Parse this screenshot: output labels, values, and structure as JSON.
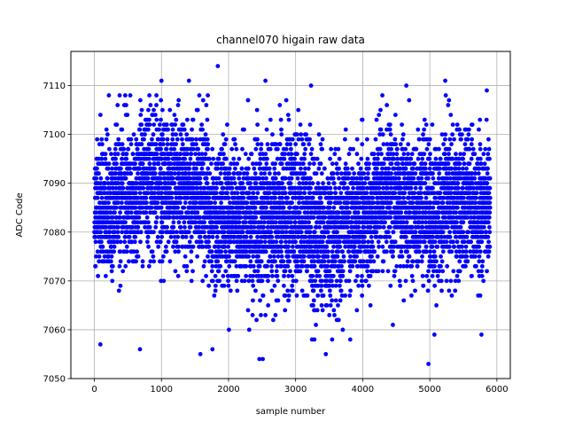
{
  "chart_data": {
    "type": "scatter",
    "title": "channel070 higain raw data",
    "xlabel": "sample number",
    "ylabel": "ADC Code",
    "xlim": [
      -350,
      6200
    ],
    "ylim": [
      7050,
      7117
    ],
    "xticks": [
      0,
      1000,
      2000,
      3000,
      4000,
      5000,
      6000
    ],
    "yticks": [
      7050,
      7060,
      7070,
      7080,
      7090,
      7100,
      7110
    ],
    "grid": true,
    "legend": "none",
    "marker_color": "#0000ff",
    "marker": "circle",
    "series": [
      {
        "n_points": 6000,
        "x_range": [
          0,
          5900
        ],
        "typical_range": [
          7070,
          7100
        ],
        "center": 7085,
        "segments": [
          {
            "x": [
              0,
              300
            ],
            "mean": 7085,
            "std": 7
          },
          {
            "x": [
              300,
              650
            ],
            "mean": 7087,
            "std": 7
          },
          {
            "x": [
              650,
              1000
            ],
            "mean": 7090,
            "std": 7
          },
          {
            "x": [
              1000,
              1400
            ],
            "mean": 7089,
            "std": 7
          },
          {
            "x": [
              1400,
              1700
            ],
            "mean": 7088,
            "std": 7
          },
          {
            "x": [
              1700,
              2200
            ],
            "mean": 7083,
            "std": 7
          },
          {
            "x": [
              2200,
              2700
            ],
            "mean": 7083,
            "std": 8
          },
          {
            "x": [
              2700,
              3200
            ],
            "mean": 7084,
            "std": 8
          },
          {
            "x": [
              3200,
              3700
            ],
            "mean": 7080,
            "std": 8
          },
          {
            "x": [
              3700,
              4200
            ],
            "mean": 7083,
            "std": 7
          },
          {
            "x": [
              4200,
              4700
            ],
            "mean": 7087,
            "std": 7
          },
          {
            "x": [
              4700,
              5200
            ],
            "mean": 7084,
            "std": 7
          },
          {
            "x": [
              5200,
              5600
            ],
            "mean": 7087,
            "std": 7
          },
          {
            "x": [
              5600,
              5900
            ],
            "mean": 7085,
            "std": 7
          }
        ],
        "outliers": [
          {
            "x": 1000,
            "y": 7111
          },
          {
            "x": 1410,
            "y": 7111
          },
          {
            "x": 1840,
            "y": 7114
          },
          {
            "x": 2550,
            "y": 7111
          },
          {
            "x": 3230,
            "y": 7110
          },
          {
            "x": 4650,
            "y": 7110
          },
          {
            "x": 5230,
            "y": 7111
          },
          {
            "x": 5850,
            "y": 7109
          },
          {
            "x": 90,
            "y": 7057
          },
          {
            "x": 680,
            "y": 7056
          },
          {
            "x": 1580,
            "y": 7055
          },
          {
            "x": 1760,
            "y": 7056
          },
          {
            "x": 2460,
            "y": 7054
          },
          {
            "x": 2510,
            "y": 7054
          },
          {
            "x": 3450,
            "y": 7055
          },
          {
            "x": 3280,
            "y": 7058
          },
          {
            "x": 4980,
            "y": 7053
          },
          {
            "x": 4450,
            "y": 7061
          },
          {
            "x": 5770,
            "y": 7059
          }
        ]
      }
    ]
  }
}
